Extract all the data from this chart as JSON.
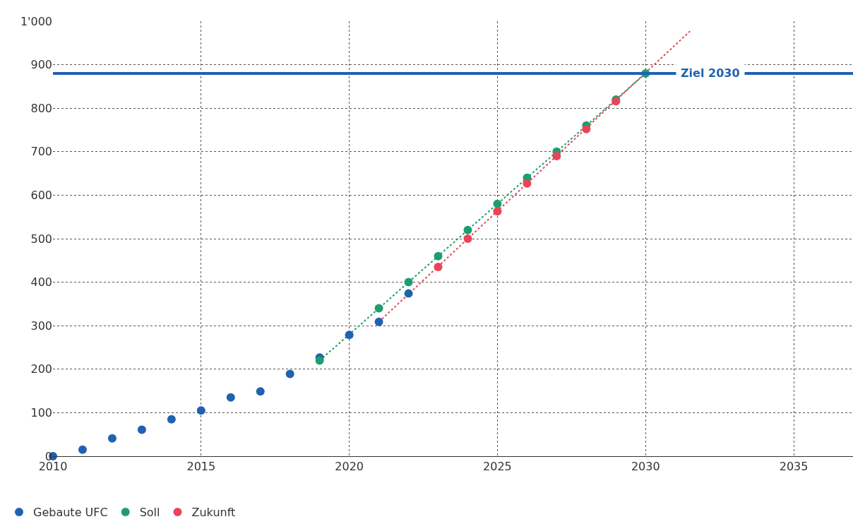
{
  "chart_data": {
    "type": "scatter",
    "xlim": [
      2010,
      2037
    ],
    "xticks": [
      2010,
      2015,
      2020,
      2025,
      2030,
      2035
    ],
    "ylim": [
      0,
      1000
    ],
    "yticks": [
      0,
      100,
      200,
      300,
      400,
      500,
      600,
      700,
      800,
      900,
      {
        "value": 1000,
        "label": "1'000"
      }
    ],
    "grid": true,
    "legend": "bottom left",
    "marker": "circle",
    "series": [
      {
        "type": "line",
        "color": "#1f9d6e",
        "line_style": "dotted",
        "marker": "none",
        "x": [
          2019,
          2030
        ],
        "values": [
          220,
          880
        ]
      },
      {
        "type": "line",
        "color": "#e8445a",
        "line_style": "dotted",
        "marker": "none",
        "x": [
          2021,
          2031.5
        ],
        "values": [
          309,
          977
        ]
      },
      {
        "name": "Gebaute UFC",
        "color": "#1f62b0",
        "x": [
          2010,
          2011,
          2012,
          2013,
          2014,
          2015,
          2016,
          2017,
          2018,
          2019,
          2020,
          2021,
          2022
        ],
        "values": [
          0,
          15,
          41,
          61,
          85,
          105,
          135,
          149,
          189,
          227,
          279,
          309,
          374
        ]
      },
      {
        "name": "Soll",
        "color": "#1f9d6e",
        "x": [
          2019,
          2021,
          2022,
          2023,
          2024,
          2025,
          2026,
          2027,
          2028,
          2029,
          2030
        ],
        "values": [
          220,
          340,
          400,
          460,
          520,
          580,
          640,
          700,
          760,
          820,
          880
        ]
      },
      {
        "name": "Zukunft",
        "color": "#e8445a",
        "x": [
          2023,
          2024,
          2025,
          2026,
          2027,
          2028,
          2029
        ],
        "values": [
          435,
          500,
          563,
          627,
          690,
          752,
          816
        ]
      }
    ],
    "ref_lines": [
      {
        "axis": "y",
        "value": 880,
        "label": "Ziel 2030",
        "color": "#1f62b0",
        "line_style": "solid"
      }
    ]
  }
}
